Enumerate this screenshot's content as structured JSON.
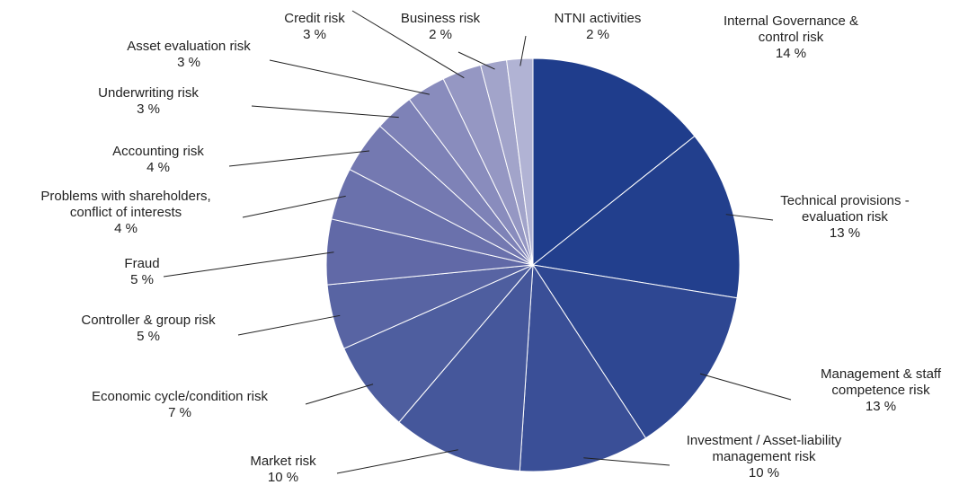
{
  "chart_data": {
    "type": "pie",
    "categories": [
      "Internal Governance & control risk",
      "Technical provisions - evaluation risk",
      "Management & staff competence risk",
      "Investment / Asset-liability management risk",
      "Market risk",
      "Economic cycle/condition risk",
      "Controller & group risk",
      "Fraud",
      "Problems with shareholders, conflict of interests",
      "Accounting risk",
      "Underwriting risk",
      "Asset evaluation risk",
      "Credit risk",
      "Business risk",
      "NTNI activities"
    ],
    "values": [
      14,
      13,
      13,
      10,
      10,
      7,
      5,
      5,
      4,
      4,
      3,
      3,
      3,
      2,
      2
    ],
    "value_labels": [
      "14 %",
      "13 %",
      "13 %",
      "10 %",
      "10 %",
      "7 %",
      "5 %",
      "5 %",
      "4 %",
      "4 %",
      "3 %",
      "3 %",
      "3 %",
      "2 %",
      "2 %"
    ],
    "colors": [
      "#1f3d8c",
      "#223f8d",
      "#2e4792",
      "#3a4f97",
      "#45579b",
      "#4e5e9f",
      "#5864a3",
      "#6169a7",
      "#6a71ac",
      "#7479b1",
      "#7e82b7",
      "#898cbd",
      "#9597c3",
      "#a2a4ca",
      "#b1b3d4"
    ]
  }
}
